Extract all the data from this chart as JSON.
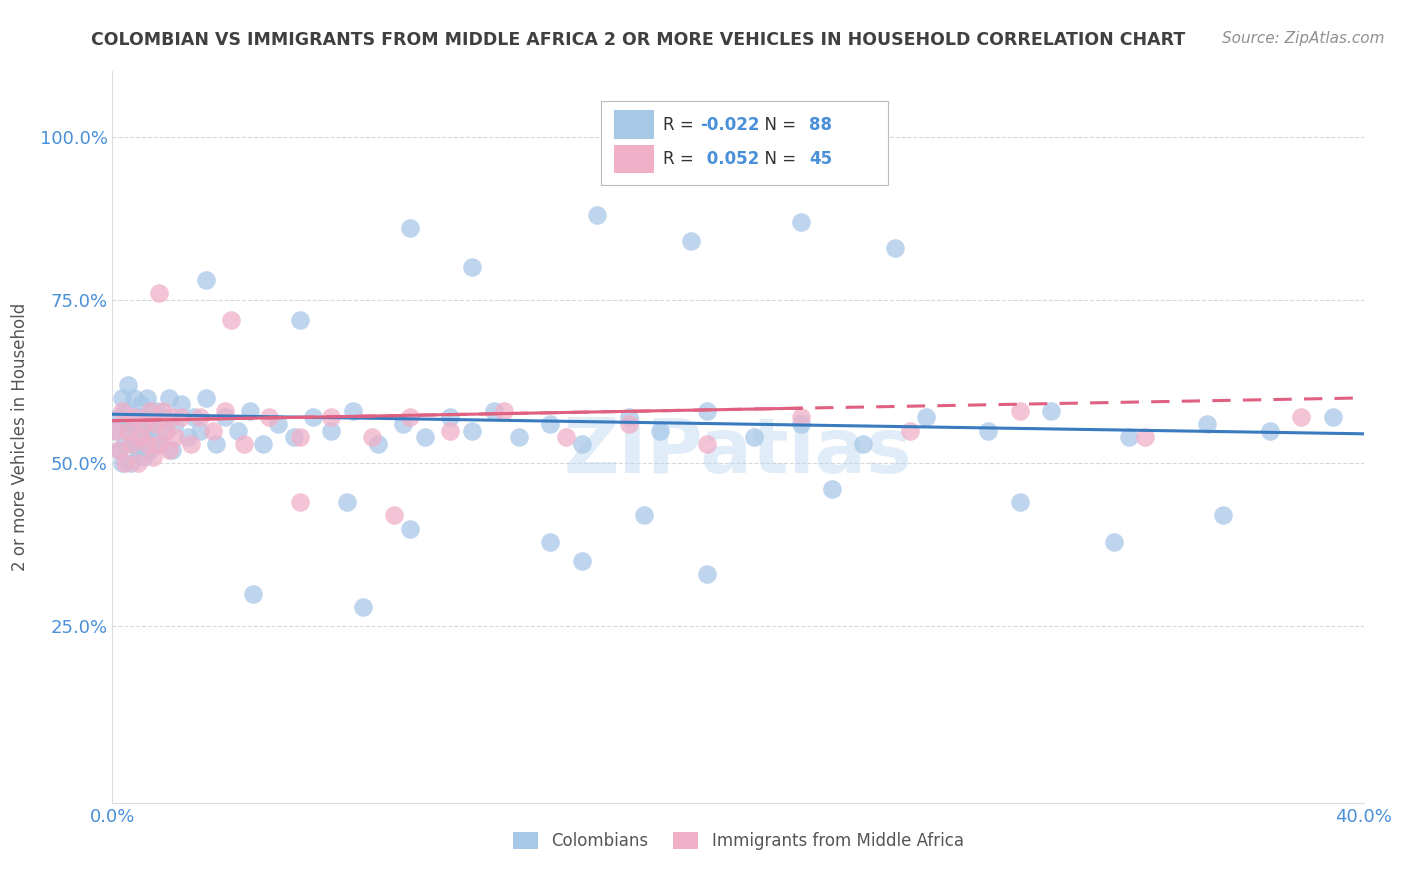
{
  "title": "COLOMBIAN VS IMMIGRANTS FROM MIDDLE AFRICA 2 OR MORE VEHICLES IN HOUSEHOLD CORRELATION CHART",
  "source": "Source: ZipAtlas.com",
  "ylabel": "2 or more Vehicles in Household",
  "xlim": [
    0.0,
    0.4
  ],
  "ylim": [
    -0.02,
    1.1
  ],
  "blue_color": "#a8c8e8",
  "pink_color": "#f0b0c8",
  "blue_line_color": "#3a7abf",
  "pink_line_color": "#e06080",
  "grid_color": "#d8d8d8",
  "title_color": "#404040",
  "source_color": "#909090",
  "tick_color": "#4a90d9",
  "watermark": "ZIPatlas",
  "legend_R_blue": "-0.022",
  "legend_N_blue": "88",
  "legend_R_pink": "0.052",
  "legend_N_pink": "45",
  "blue_x": [
    0.001,
    0.002,
    0.002,
    0.003,
    0.003,
    0.004,
    0.004,
    0.005,
    0.005,
    0.006,
    0.006,
    0.007,
    0.007,
    0.008,
    0.008,
    0.009,
    0.009,
    0.01,
    0.01,
    0.011,
    0.011,
    0.012,
    0.012,
    0.013,
    0.014,
    0.015,
    0.016,
    0.017,
    0.018,
    0.019,
    0.02,
    0.022,
    0.024,
    0.026,
    0.028,
    0.03,
    0.033,
    0.036,
    0.04,
    0.044,
    0.048,
    0.053,
    0.058,
    0.064,
    0.07,
    0.077,
    0.085,
    0.093,
    0.1,
    0.108,
    0.115,
    0.122,
    0.13,
    0.14,
    0.15,
    0.165,
    0.175,
    0.19,
    0.205,
    0.22,
    0.24,
    0.26,
    0.28,
    0.3,
    0.325,
    0.35,
    0.37,
    0.39,
    0.03,
    0.06,
    0.095,
    0.115,
    0.155,
    0.185,
    0.22,
    0.25,
    0.075,
    0.095,
    0.14,
    0.17,
    0.23,
    0.29,
    0.32,
    0.355,
    0.045,
    0.08,
    0.15,
    0.19
  ],
  "blue_y": [
    0.55,
    0.52,
    0.57,
    0.5,
    0.6,
    0.53,
    0.58,
    0.55,
    0.62,
    0.5,
    0.56,
    0.53,
    0.6,
    0.52,
    0.57,
    0.54,
    0.59,
    0.51,
    0.57,
    0.55,
    0.6,
    0.52,
    0.56,
    0.54,
    0.58,
    0.53,
    0.57,
    0.55,
    0.6,
    0.52,
    0.56,
    0.59,
    0.54,
    0.57,
    0.55,
    0.6,
    0.53,
    0.57,
    0.55,
    0.58,
    0.53,
    0.56,
    0.54,
    0.57,
    0.55,
    0.58,
    0.53,
    0.56,
    0.54,
    0.57,
    0.55,
    0.58,
    0.54,
    0.56,
    0.53,
    0.57,
    0.55,
    0.58,
    0.54,
    0.56,
    0.53,
    0.57,
    0.55,
    0.58,
    0.54,
    0.56,
    0.55,
    0.57,
    0.78,
    0.72,
    0.86,
    0.8,
    0.88,
    0.84,
    0.87,
    0.83,
    0.44,
    0.4,
    0.38,
    0.42,
    0.46,
    0.44,
    0.38,
    0.42,
    0.3,
    0.28,
    0.35,
    0.33
  ],
  "pink_x": [
    0.001,
    0.002,
    0.003,
    0.004,
    0.005,
    0.006,
    0.007,
    0.008,
    0.009,
    0.01,
    0.011,
    0.012,
    0.013,
    0.014,
    0.015,
    0.016,
    0.017,
    0.018,
    0.019,
    0.02,
    0.022,
    0.025,
    0.028,
    0.032,
    0.036,
    0.042,
    0.05,
    0.06,
    0.07,
    0.083,
    0.095,
    0.108,
    0.125,
    0.145,
    0.165,
    0.19,
    0.22,
    0.255,
    0.29,
    0.33,
    0.38,
    0.06,
    0.09,
    0.038,
    0.015
  ],
  "pink_y": [
    0.55,
    0.52,
    0.58,
    0.5,
    0.55,
    0.53,
    0.57,
    0.5,
    0.54,
    0.56,
    0.53,
    0.58,
    0.51,
    0.56,
    0.53,
    0.58,
    0.55,
    0.52,
    0.57,
    0.54,
    0.57,
    0.53,
    0.57,
    0.55,
    0.58,
    0.53,
    0.57,
    0.54,
    0.57,
    0.54,
    0.57,
    0.55,
    0.58,
    0.54,
    0.56,
    0.53,
    0.57,
    0.55,
    0.58,
    0.54,
    0.57,
    0.44,
    0.42,
    0.72,
    0.76
  ]
}
